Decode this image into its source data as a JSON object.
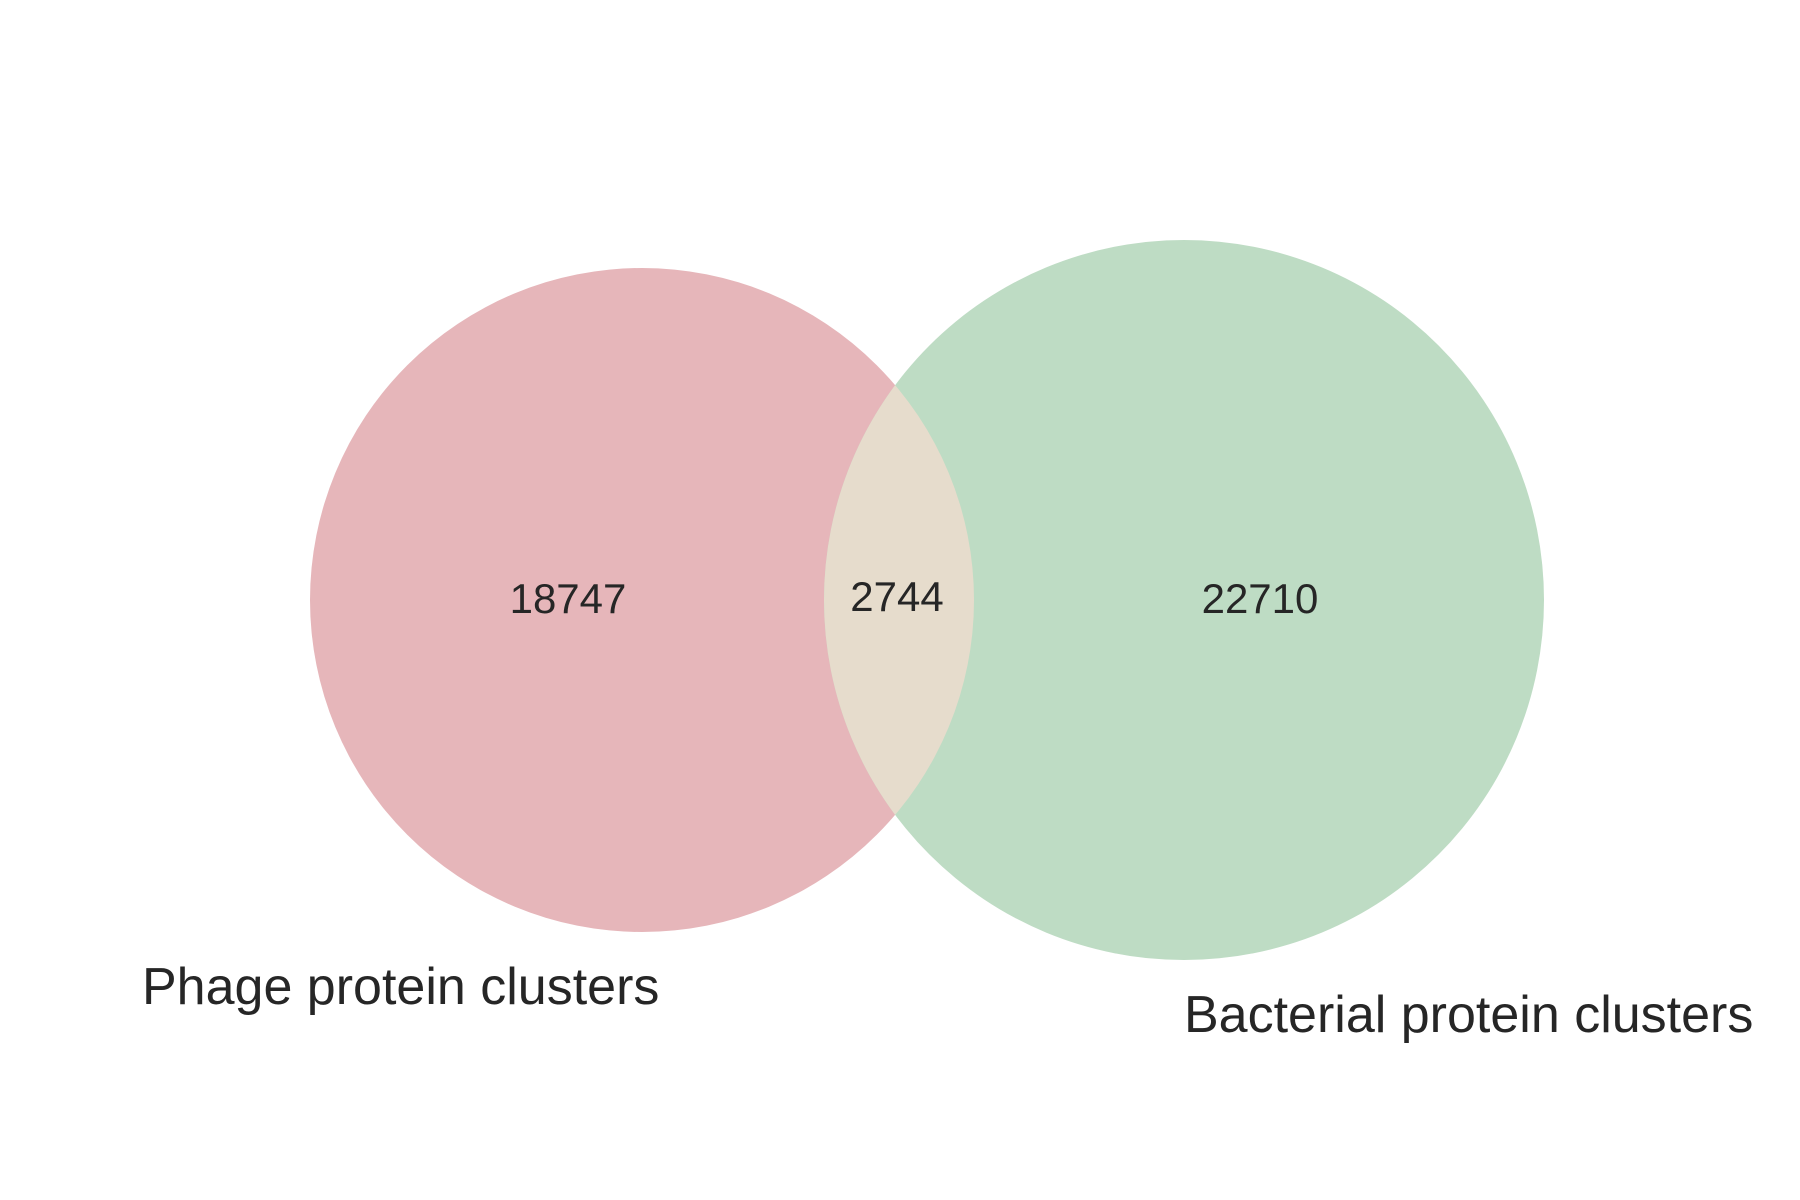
{
  "chart_data": {
    "type": "venn",
    "sets": [
      {
        "name": "Phage protein clusters",
        "only": 18747,
        "color": "#e6b6ba"
      },
      {
        "name": "Bacterial protein clusters",
        "only": 22710,
        "color": "#bedcc4"
      }
    ],
    "intersection": 2744,
    "intersection_color": "#e6dccc",
    "text_color": "#262626"
  }
}
